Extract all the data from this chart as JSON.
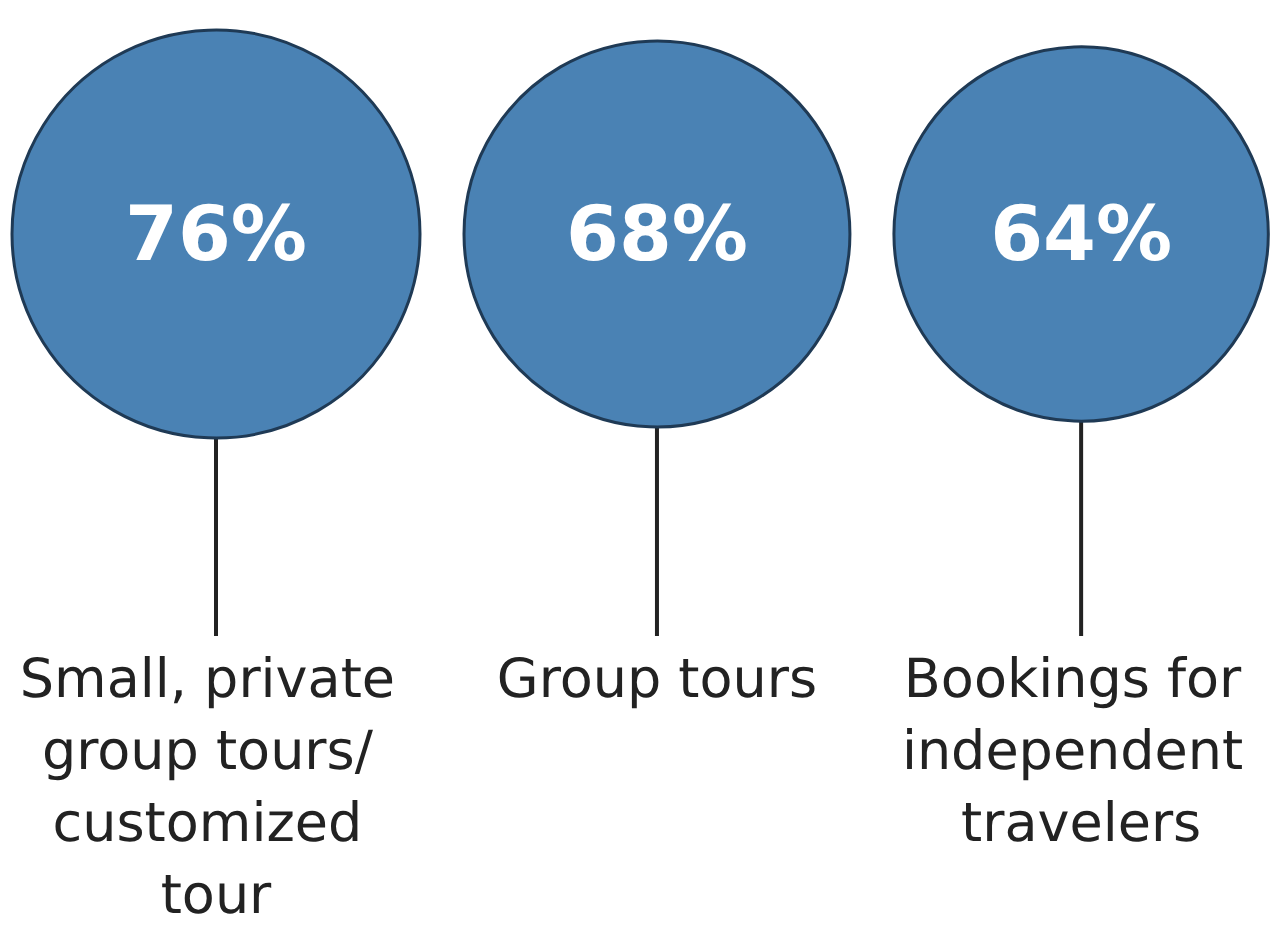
{
  "chart_data": {
    "type": "other",
    "categories": [
      "Small, private group tours/ customized tour",
      "Group tours",
      "Bookings for independent travelers"
    ],
    "values": [
      76,
      68,
      64
    ],
    "value_labels": [
      "76%",
      "68%",
      "64%"
    ],
    "color": "#4a82b4"
  }
}
